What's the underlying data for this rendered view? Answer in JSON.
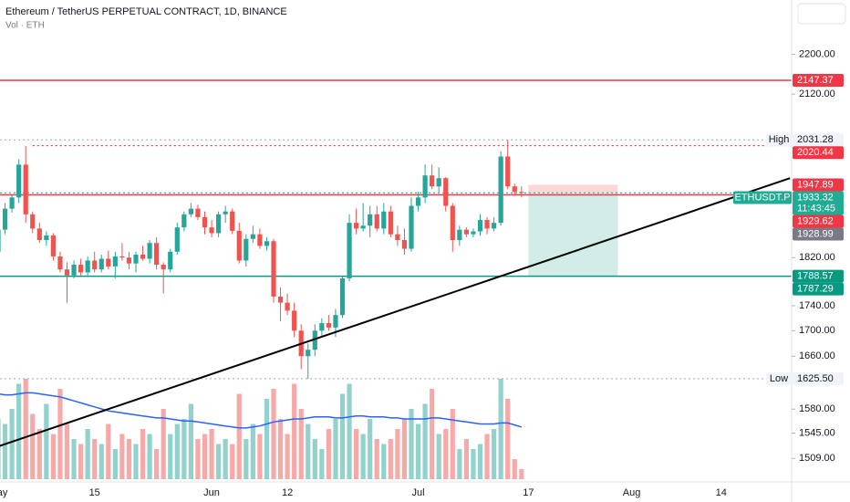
{
  "header": {
    "title": "Ethereum / TetherUS PERPETUAL CONTRACT, 1D, BINANCE",
    "volume_label": "Vol · ETH"
  },
  "chart_data": {
    "type": "candlestick",
    "log_scale": true,
    "grid": false,
    "ylim": [
      1480,
      2260
    ],
    "yticks": [
      {
        "value": 2200,
        "label": "2200.00"
      },
      {
        "value": 2120,
        "label": "2120.00"
      },
      {
        "value": 1820,
        "label": "1820.00"
      },
      {
        "value": 1740,
        "label": "1740.00"
      },
      {
        "value": 1700,
        "label": "1700.00"
      },
      {
        "value": 1660,
        "label": "1660.00"
      },
      {
        "value": 1580,
        "label": "1580.00"
      },
      {
        "value": 1545,
        "label": "1545.00"
      },
      {
        "value": 1509,
        "label": "1509.00"
      }
    ],
    "up_color": "#26a69a",
    "down_color": "#ef5350",
    "volume_up_color": "rgba(38,166,154,0.5)",
    "volume_down_color": "rgba(239,83,80,0.5)",
    "ma_color": "#2962ff",
    "volume_ylim": [
      0,
      100
    ],
    "categories": [
      "May",
      null,
      null,
      null,
      null,
      null,
      null,
      null,
      null,
      null,
      null,
      null,
      null,
      null,
      "15",
      null,
      null,
      null,
      null,
      null,
      null,
      null,
      null,
      null,
      null,
      null,
      null,
      null,
      null,
      null,
      null,
      "Jun",
      null,
      null,
      null,
      null,
      null,
      null,
      null,
      null,
      null,
      null,
      "12",
      null,
      null,
      null,
      null,
      null,
      null,
      null,
      null,
      null,
      null,
      null,
      null,
      null,
      null,
      null,
      null,
      null,
      null,
      "Jul",
      null,
      null,
      null,
      null,
      null,
      null,
      null,
      null,
      null,
      null,
      null,
      null,
      null,
      null,
      null,
      "17",
      null,
      null,
      null,
      null,
      null,
      null,
      null,
      null,
      null,
      null,
      null,
      null,
      null,
      null,
      "Aug",
      null,
      null,
      null,
      null,
      null,
      null,
      null,
      null,
      null,
      null,
      null,
      null,
      "14",
      null,
      null,
      null,
      null,
      null,
      null,
      null,
      null,
      null
    ],
    "open": [
      1830,
      1868,
      1905,
      1925,
      1985,
      1895,
      1870,
      1850,
      1858,
      1822,
      1800,
      1790,
      1808,
      1795,
      1815,
      1800,
      1818,
      1805,
      1822,
      1820,
      1810,
      1825,
      1818,
      1845,
      1808,
      1800,
      1830,
      1872,
      1895,
      1905,
      1890,
      1872,
      1862,
      1895,
      1900,
      1866,
      1815,
      1852,
      1860,
      1840,
      1848,
      1755,
      1745,
      1732,
      1700,
      1660,
      1670,
      1700,
      1712,
      1705,
      1725,
      1785,
      1880,
      1870,
      1875,
      1895,
      1870,
      1900,
      1860,
      1850,
      1835,
      1910,
      1925,
      1965,
      1945,
      1960,
      1910,
      1850,
      1868,
      1860,
      1865,
      1885,
      1870,
      1880,
      2000,
      1945,
      1935,
      null,
      null,
      null,
      null,
      null,
      null,
      null,
      null,
      null,
      null,
      null,
      null,
      null,
      null,
      null,
      null,
      null,
      null,
      null,
      null,
      null,
      null,
      null,
      null,
      null,
      null,
      null,
      null,
      null,
      null,
      null,
      null,
      null,
      null,
      null,
      null,
      null,
      null
    ],
    "high": [
      1875,
      1915,
      1930,
      1995,
      2020,
      1900,
      1880,
      1865,
      1862,
      1830,
      1812,
      1815,
      1818,
      1822,
      1830,
      1825,
      1832,
      1830,
      1845,
      1830,
      1830,
      1840,
      1850,
      1855,
      1812,
      1835,
      1880,
      1900,
      1915,
      1912,
      1900,
      1885,
      1900,
      1910,
      1905,
      1880,
      1860,
      1875,
      1870,
      1855,
      1852,
      1770,
      1760,
      1745,
      1710,
      1680,
      1710,
      1720,
      1725,
      1735,
      1790,
      1895,
      1905,
      1915,
      1910,
      1910,
      1915,
      1910,
      1875,
      1870,
      1925,
      1935,
      1985,
      1985,
      1980,
      1962,
      1915,
      1875,
      1872,
      1870,
      1895,
      1890,
      1890,
      2010,
      2031.28,
      1950,
      1945,
      null,
      null,
      null,
      null,
      null,
      null,
      null,
      null,
      null,
      null,
      null,
      null,
      null,
      null,
      null,
      null,
      null,
      null,
      null,
      null,
      null,
      null,
      null,
      null,
      null,
      null,
      null,
      null,
      null,
      null,
      null,
      null,
      null,
      null,
      null,
      null,
      null,
      null
    ],
    "low": [
      1820,
      1860,
      1898,
      1915,
      1880,
      1862,
      1845,
      1840,
      1815,
      1795,
      1745,
      1785,
      1790,
      1790,
      1795,
      1795,
      1800,
      1785,
      1815,
      1800,
      1795,
      1815,
      1810,
      1800,
      1760,
      1795,
      1825,
      1865,
      1890,
      1885,
      1860,
      1855,
      1855,
      1880,
      1860,
      1810,
      1805,
      1845,
      1835,
      1832,
      1745,
      1715,
      1725,
      1690,
      1640,
      1625.5,
      1660,
      1690,
      1700,
      1690,
      1720,
      1780,
      1860,
      1865,
      1855,
      1865,
      1860,
      1855,
      1840,
      1825,
      1830,
      1900,
      1915,
      1940,
      1935,
      1900,
      1830,
      1840,
      1855,
      1855,
      1858,
      1860,
      1865,
      1875,
      1940,
      1928,
      1925,
      null,
      null,
      null,
      null,
      null,
      null,
      null,
      null,
      null,
      null,
      null,
      null,
      null,
      null,
      null,
      null,
      null,
      null,
      null,
      null,
      null,
      null,
      null,
      null,
      null,
      null,
      null,
      null,
      null,
      null,
      null,
      null,
      null,
      null,
      null,
      null,
      null,
      null
    ],
    "close": [
      1868,
      1905,
      1925,
      1985,
      1895,
      1870,
      1850,
      1858,
      1822,
      1800,
      1790,
      1808,
      1795,
      1815,
      1800,
      1818,
      1805,
      1822,
      1820,
      1810,
      1825,
      1818,
      1845,
      1808,
      1800,
      1830,
      1872,
      1895,
      1905,
      1890,
      1872,
      1862,
      1895,
      1900,
      1866,
      1815,
      1852,
      1860,
      1840,
      1848,
      1755,
      1745,
      1732,
      1700,
      1660,
      1670,
      1700,
      1712,
      1705,
      1725,
      1785,
      1880,
      1870,
      1875,
      1895,
      1870,
      1900,
      1860,
      1850,
      1835,
      1910,
      1925,
      1965,
      1945,
      1960,
      1910,
      1850,
      1868,
      1860,
      1865,
      1885,
      1870,
      1880,
      2000,
      1945,
      1935,
      1933.32,
      null,
      null,
      null,
      null,
      null,
      null,
      null,
      null,
      null,
      null,
      null,
      null,
      null,
      null,
      null,
      null,
      null,
      null,
      null,
      null,
      null,
      null,
      null,
      null,
      null,
      null,
      null,
      null,
      null,
      null,
      null,
      null,
      null,
      null,
      null,
      null,
      null,
      null
    ],
    "volume": [
      60,
      55,
      70,
      95,
      100,
      65,
      50,
      75,
      45,
      90,
      55,
      40,
      35,
      50,
      40,
      35,
      55,
      30,
      45,
      40,
      35,
      50,
      45,
      30,
      70,
      45,
      55,
      60,
      75,
      40,
      45,
      50,
      35,
      40,
      35,
      85,
      40,
      55,
      45,
      80,
      90,
      60,
      45,
      95,
      70,
      55,
      40,
      30,
      50,
      60,
      85,
      95,
      50,
      45,
      60,
      40,
      35,
      40,
      50,
      60,
      70,
      55,
      75,
      90,
      45,
      50,
      70,
      30,
      40,
      30,
      35,
      45,
      50,
      100,
      80,
      20,
      10,
      null,
      null,
      null,
      null,
      null,
      null,
      null,
      null,
      null,
      null,
      null,
      null,
      null,
      null,
      null,
      null,
      null,
      null,
      null,
      null,
      null,
      null,
      null,
      null,
      null,
      null,
      null,
      null,
      null,
      null,
      null,
      null,
      null,
      null,
      null,
      null,
      null,
      null
    ],
    "volume_ma": [
      85,
      84,
      84,
      85,
      86,
      86,
      85,
      84,
      83,
      82,
      80,
      78,
      76,
      74,
      72,
      70,
      68,
      67,
      66,
      65,
      64,
      63,
      62,
      61,
      61,
      60,
      59,
      58,
      58,
      57,
      56,
      55,
      54,
      53,
      52,
      51,
      51,
      52,
      53,
      55,
      57,
      58,
      59,
      60,
      60,
      61,
      62,
      62,
      62,
      61,
      61,
      62,
      63,
      63,
      62,
      62,
      62,
      61,
      61,
      60,
      60,
      60,
      60,
      61,
      61,
      60,
      59,
      58,
      57,
      56,
      55,
      55,
      55,
      56,
      56,
      54,
      52,
      null,
      null,
      null,
      null,
      null,
      null,
      null,
      null,
      null,
      null,
      null,
      null,
      null,
      null,
      null,
      null,
      null,
      null,
      null,
      null,
      null,
      null,
      null,
      null,
      null,
      null,
      null,
      null,
      null,
      null,
      null,
      null,
      null,
      null,
      null,
      null,
      null,
      null
    ],
    "trendline": {
      "start_index": 0,
      "start_price": 1526,
      "end_index": 115,
      "end_price": 1960,
      "color": "#000000"
    },
    "position": {
      "start_index": 77,
      "end_index": 90,
      "stop": 1947.89,
      "entry": 1933.32,
      "target": 1788.57,
      "stop_color": "rgba(242,54,69,0.2)",
      "target_color": "rgba(8,153,129,0.18)"
    },
    "tags": [
      {
        "value": 2147.37,
        "color": "#f23645",
        "line": "solid",
        "line_color": "#f23645"
      },
      {
        "name": "High",
        "value": 2031.28,
        "color": "#f0f3fa",
        "dark_text": true,
        "line": "dotted",
        "line_color": "#b2b5be"
      },
      {
        "value": 2020.44,
        "color": "#f23645",
        "line": "dotted",
        "line_color": "#f23645",
        "line_start": 5
      },
      {
        "value": 1947.89,
        "color": "#f23645"
      },
      {
        "name": "ETHUSDT.P",
        "value": 1933.32,
        "countdown": "11:43:45",
        "color": "#22ab94",
        "line": "dotted",
        "line_color": "#22ab94"
      },
      {
        "value": 1929.62,
        "color": "#f23645",
        "line": "solid",
        "line_color": "#f23645"
      },
      {
        "value": 1928.99,
        "color": "#787b86"
      },
      {
        "value": 1788.57,
        "color": "#089981",
        "line": "solid",
        "line_color": "#089981"
      },
      {
        "value": 1787.29,
        "color": "#089981"
      },
      {
        "name": "Low",
        "value": 1625.5,
        "label": "1625.50",
        "color": "#f0f3fa",
        "dark_text": true,
        "line": "dotted",
        "line_color": "#b2b5be"
      }
    ]
  }
}
